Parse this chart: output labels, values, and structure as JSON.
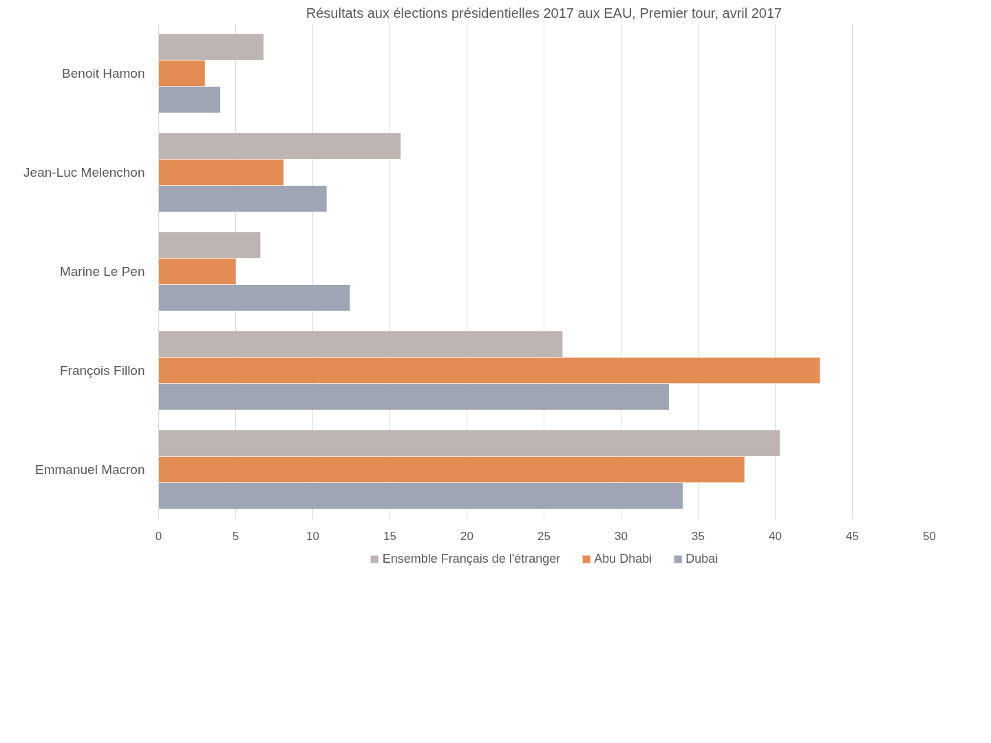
{
  "chart_data": {
    "type": "bar",
    "orientation": "horizontal",
    "title": "Résultats aux élections présidentielles 2017 aux EAU, Premier tour, avril 2017",
    "categories": [
      "Benoit Hamon",
      "Jean-Luc Melenchon",
      "Marine Le Pen",
      "François Fillon",
      "Emmanuel Macron"
    ],
    "series": [
      {
        "name": "Ensemble Français de l'étranger",
        "color": "#bdb5b1",
        "values": [
          6.8,
          15.7,
          6.6,
          26.2,
          40.3
        ]
      },
      {
        "name": "Abu Dhabi",
        "color": "#e38d55",
        "values": [
          3.0,
          8.1,
          5.0,
          42.9,
          38.0
        ]
      },
      {
        "name": "Dubai",
        "color": "#9fa5b5",
        "values": [
          4.0,
          10.9,
          12.4,
          33.1,
          34.0
        ]
      }
    ],
    "xlim": [
      0,
      50
    ],
    "xticks": [
      0,
      5,
      10,
      15,
      20,
      25,
      30,
      35,
      40,
      45,
      50
    ],
    "grid": "x",
    "legend": "bottom"
  }
}
